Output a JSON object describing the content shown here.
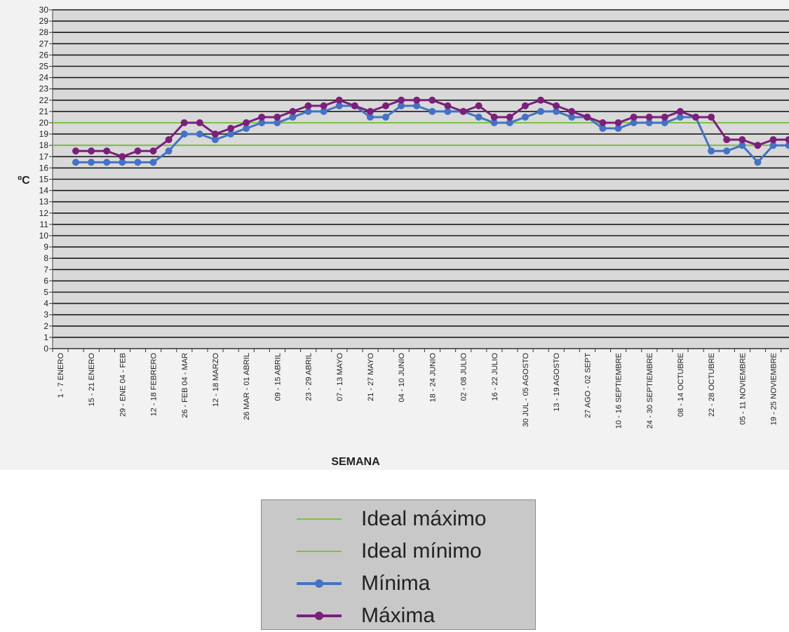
{
  "chart_data": {
    "type": "line",
    "ylabel": "ºC",
    "xlabel": "SEMANA",
    "ylim": [
      0,
      30
    ],
    "grid": true,
    "legend_position": "bottom-center",
    "colors": {
      "plot_bg": "#d9d9d9",
      "grid": "#1a1a1a",
      "ideal": "#7cc242",
      "minima": "#4472c4",
      "maxima": "#7b1f7b"
    },
    "x_tick_labels": [
      "1 - 7 ENERO",
      "15 - 21 ENERO",
      "29 - ENE 04 - FEB",
      "12 - 18 FEBRERO",
      "26 - FEB 04 - MAR",
      "12 - 18 MARZO",
      "26 MAR - 01 ABRIL",
      "09 - 15 ABRIL",
      "23 - 29 ABRIL",
      "07 - 13 MAYO",
      "21 - 27 MAYO",
      "04 - 10 JUNIO",
      "18 - 24 JUNIO",
      "02 - 08 JULIO",
      "16 - 22 JULIO",
      "30 JUL - 05 AGOSTO",
      "13 - 19 AGOSTO",
      "27 AGO - 02 SEPT",
      "10 - 16 SEPTIEMBRE",
      "24 - 30 SEPTIEMBRE",
      "08 - 14 OCTUBRE",
      "22 - 28 OCTUBRE",
      "05 - 11 NOVIEMBRE",
      "19 - 25 NOVIEMBRE"
    ],
    "series": [
      {
        "name": "Ideal máximo",
        "kind": "reference",
        "value": 20
      },
      {
        "name": "Ideal mínimo",
        "kind": "reference",
        "value": 18
      },
      {
        "name": "Mínima",
        "kind": "line",
        "values": [
          16.5,
          16.5,
          16.5,
          16.5,
          16.5,
          16.5,
          17.5,
          19,
          19,
          18.5,
          19,
          19.5,
          20,
          20,
          20.5,
          21,
          21,
          21.5,
          21.5,
          20.5,
          20.5,
          21.5,
          21.5,
          21,
          21,
          21,
          20.5,
          20,
          20,
          20.5,
          21,
          21,
          20.5,
          20.5,
          19.5,
          19.5,
          20,
          20,
          20,
          20.5,
          20.5,
          17.5,
          17.5,
          18,
          16.5,
          18,
          18
        ]
      },
      {
        "name": "Máxima",
        "kind": "line",
        "values": [
          17.5,
          17.5,
          17.5,
          17,
          17.5,
          17.5,
          18.5,
          20,
          20,
          19,
          19.5,
          20,
          20.5,
          20.5,
          21,
          21.5,
          21.5,
          22,
          21.5,
          21,
          21.5,
          22,
          22,
          22,
          21.5,
          21,
          21.5,
          20.5,
          20.5,
          21.5,
          22,
          21.5,
          21,
          20.5,
          20,
          20,
          20.5,
          20.5,
          20.5,
          21,
          20.5,
          20.5,
          18.5,
          18.5,
          18,
          18.5,
          18.5
        ]
      }
    ]
  }
}
